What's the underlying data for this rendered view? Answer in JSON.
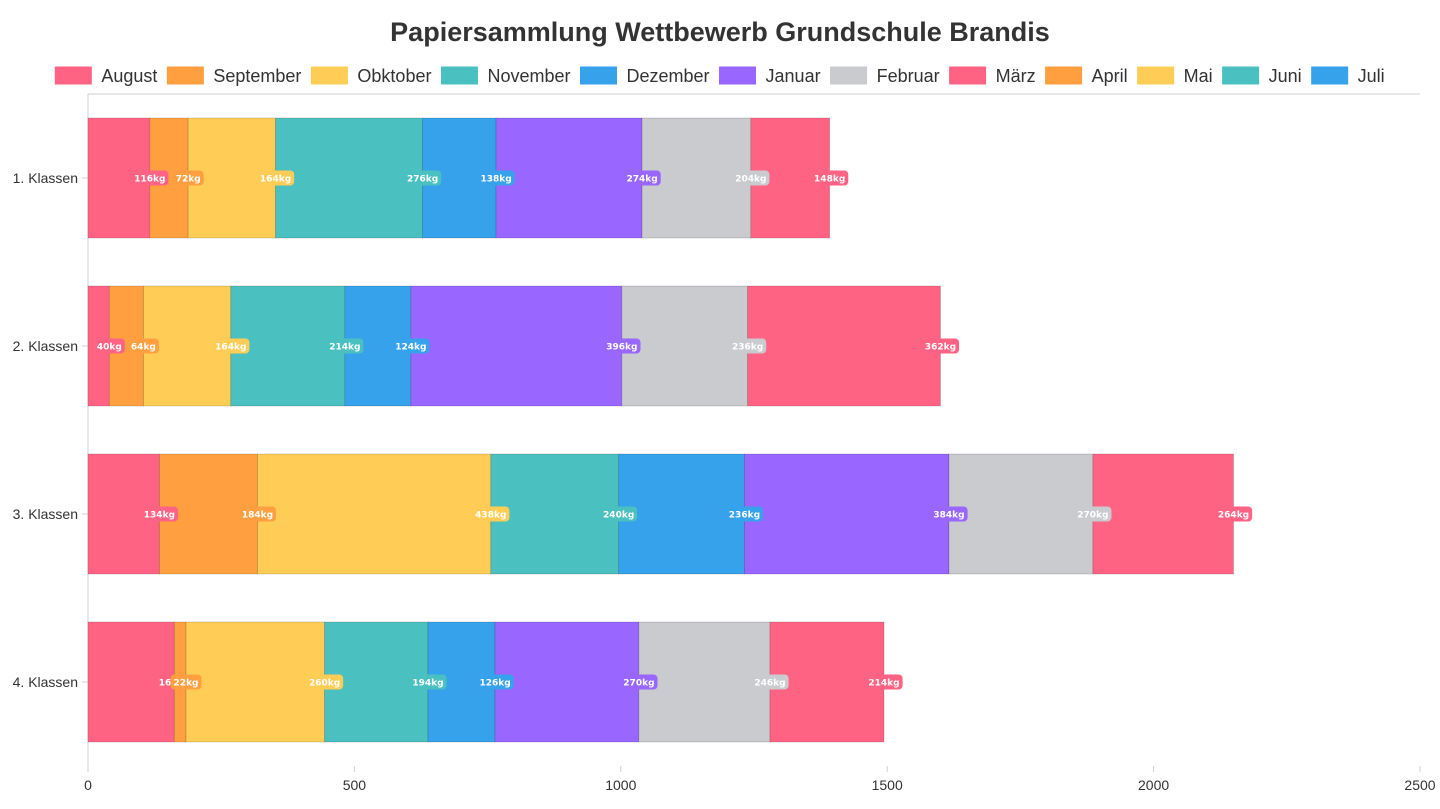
{
  "chart_data": {
    "type": "bar",
    "orientation": "horizontal",
    "stacked": true,
    "title": "Papiersammlung Wettbewerb Grundschule Brandis",
    "xlabel": "",
    "ylabel": "",
    "categories": [
      "1. Klassen",
      "2. Klassen",
      "3. Klassen",
      "4. Klassen"
    ],
    "xlim": [
      0,
      2500
    ],
    "xticks": [
      0,
      500,
      1000,
      1500,
      2000,
      2500
    ],
    "unit_suffix": "kg",
    "legend_position": "top",
    "grid": false,
    "series": [
      {
        "name": "August",
        "color": "#ff6384",
        "values": [
          116,
          40,
          134,
          162
        ]
      },
      {
        "name": "September",
        "color": "#ff9f40",
        "values": [
          72,
          64,
          184,
          22
        ]
      },
      {
        "name": "Obktober",
        "color": "#ffcd56",
        "values": [
          164,
          164,
          438,
          260
        ]
      },
      {
        "name": "November",
        "color": "#4bc0c0",
        "values": [
          276,
          214,
          240,
          194
        ]
      },
      {
        "name": "Dezember",
        "color": "#36a2eb",
        "values": [
          138,
          124,
          236,
          126
        ]
      },
      {
        "name": "Januar",
        "color": "#9966ff",
        "values": [
          274,
          396,
          384,
          270
        ]
      },
      {
        "name": "Februar",
        "color": "#c9cbcf",
        "values": [
          204,
          236,
          270,
          246
        ]
      },
      {
        "name": "März",
        "color": "#ff6384",
        "values": [
          148,
          362,
          264,
          214
        ]
      },
      {
        "name": "April",
        "color": "#ff9f40",
        "values": [
          0,
          0,
          0,
          0
        ]
      },
      {
        "name": "Mai",
        "color": "#ffcd56",
        "values": [
          0,
          0,
          0,
          0
        ]
      },
      {
        "name": "Juni",
        "color": "#4bc0c0",
        "values": [
          0,
          0,
          0,
          0
        ]
      },
      {
        "name": "Juli",
        "color": "#36a2eb",
        "values": [
          0,
          0,
          0,
          0
        ]
      }
    ]
  }
}
